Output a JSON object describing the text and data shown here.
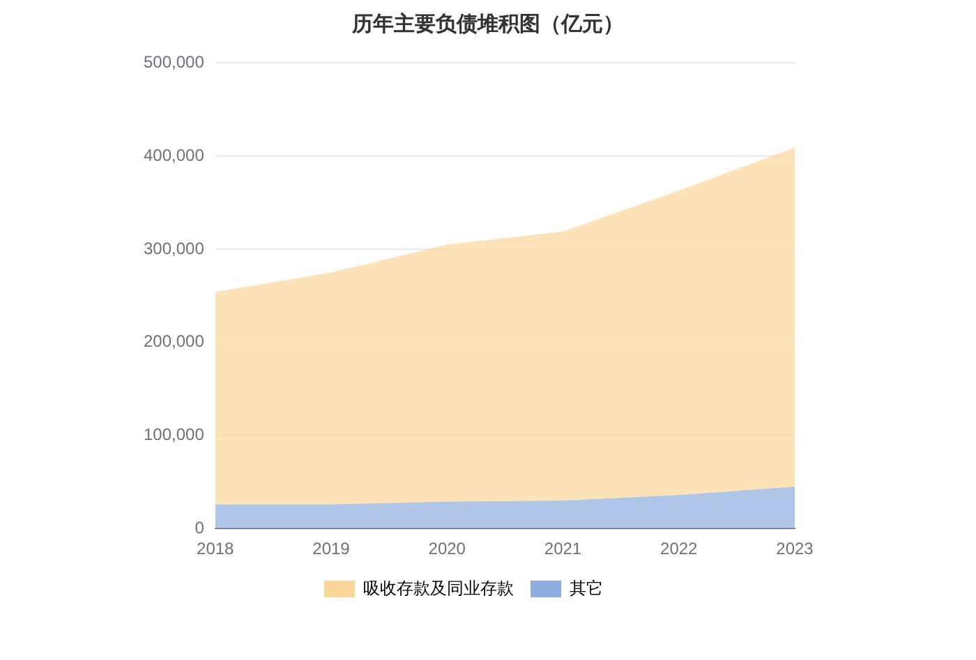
{
  "chart_data": {
    "type": "area",
    "title": "历年主要负债堆积图（亿元）",
    "categories": [
      "2018",
      "2019",
      "2020",
      "2021",
      "2022",
      "2023"
    ],
    "stacked": true,
    "series": [
      {
        "name": "其它",
        "color": "#8eaee0",
        "values": [
          26000,
          26000,
          29000,
          30000,
          36000,
          45000
        ]
      },
      {
        "name": "吸收存款及同业存款",
        "color": "#fdd79a",
        "values": [
          228000,
          249000,
          276000,
          289000,
          327000,
          364000
        ]
      }
    ],
    "ylim": [
      0,
      500000
    ],
    "yticks": [
      0,
      {
        "value": 100000,
        "label": "100,000"
      },
      {
        "value": 200000,
        "label": "200,000"
      },
      {
        "value": 300000,
        "label": "300,000"
      },
      {
        "value": 400000,
        "label": "400,000"
      },
      {
        "value": 500000,
        "label": "500,000"
      }
    ],
    "grid": "y",
    "legend": "bottom"
  }
}
